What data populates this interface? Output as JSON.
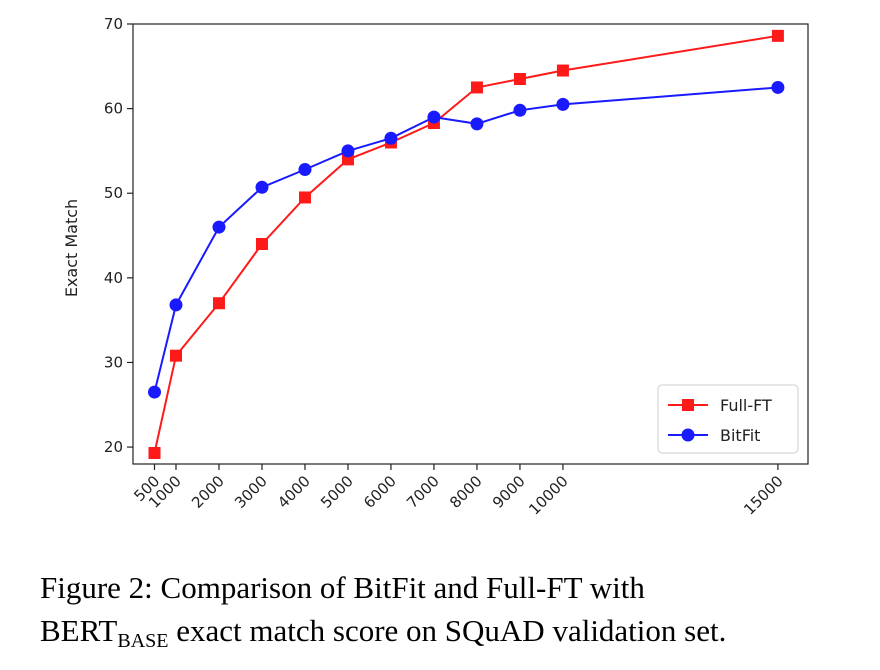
{
  "chart_data": {
    "type": "line",
    "x": [
      500,
      1000,
      2000,
      3000,
      4000,
      5000,
      6000,
      7000,
      8000,
      9000,
      10000,
      15000
    ],
    "xticks": [
      "500",
      "1000",
      "2000",
      "3000",
      "4000",
      "5000",
      "6000",
      "7000",
      "8000",
      "9000",
      "10000",
      "15000"
    ],
    "yticks": [
      "20",
      "30",
      "40",
      "50",
      "60",
      "70"
    ],
    "ylabel": "Exact Match",
    "xlabel": "",
    "title": "",
    "ylim": [
      18,
      70
    ],
    "xlim": [
      0,
      15700
    ],
    "grid": false,
    "legend_position": "lower-right",
    "series": [
      {
        "name": "Full-FT",
        "color": "#ff1a1a",
        "marker": "square",
        "values": [
          19.3,
          30.8,
          37.0,
          44.0,
          49.5,
          54.0,
          56.0,
          58.3,
          62.5,
          63.5,
          64.5,
          68.6
        ]
      },
      {
        "name": "BitFit",
        "color": "#1a1aff",
        "marker": "circle",
        "values": [
          26.5,
          36.8,
          46.0,
          50.7,
          52.8,
          55.0,
          56.5,
          59.0,
          58.2,
          59.8,
          60.5,
          62.5
        ]
      }
    ]
  },
  "caption": {
    "line1": "Figure 2:  Comparison of BitFit and Full-FT with",
    "bert": "BERT",
    "base": "BASE",
    "line2_rest": " exact match score on SQuAD validation set."
  }
}
